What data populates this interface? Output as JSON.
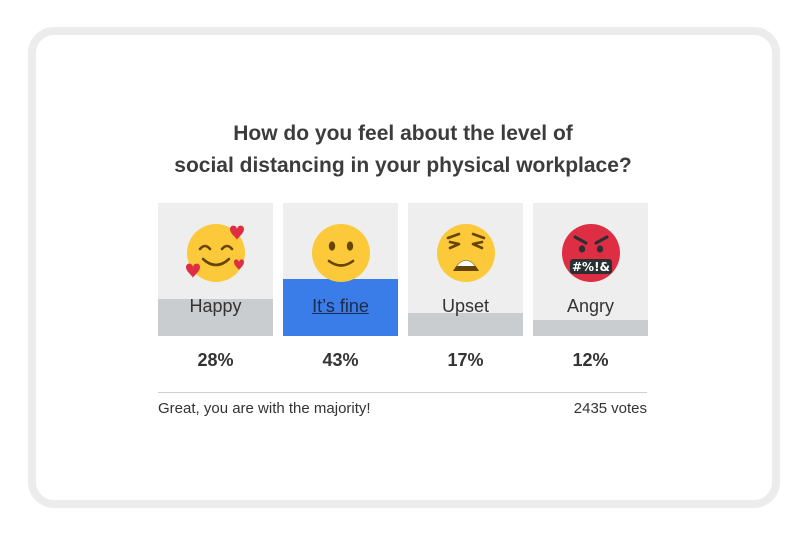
{
  "poll": {
    "question_line1": "How do you feel about the level of",
    "question_line2": "social distancing in your physical workplace?",
    "options": [
      {
        "label": "Happy",
        "percent": "28%",
        "icon": "smiling-face-with-hearts-icon",
        "share": 0.28,
        "selected": false
      },
      {
        "label": "It’s fine",
        "percent": "43%",
        "icon": "slightly-smiling-face-icon",
        "share": 0.43,
        "selected": true
      },
      {
        "label": "Upset",
        "percent": "17%",
        "icon": "weary-face-icon",
        "share": 0.17,
        "selected": false
      },
      {
        "label": "Angry",
        "percent": "12%",
        "icon": "face-with-symbols-on-mouth-icon",
        "share": 0.12,
        "selected": false
      }
    ],
    "result_message": "Great, you are with the majority!",
    "vote_count": "2435",
    "vote_unit": "votes",
    "angry_symbols": "#%!&"
  },
  "colors": {
    "selected_fill": "#3b7de8",
    "result_fill": "#cacdcf",
    "tile_background": "#eeeeee",
    "emoji_yellow": "#fcc93a",
    "emoji_red": "#dd2e44"
  }
}
